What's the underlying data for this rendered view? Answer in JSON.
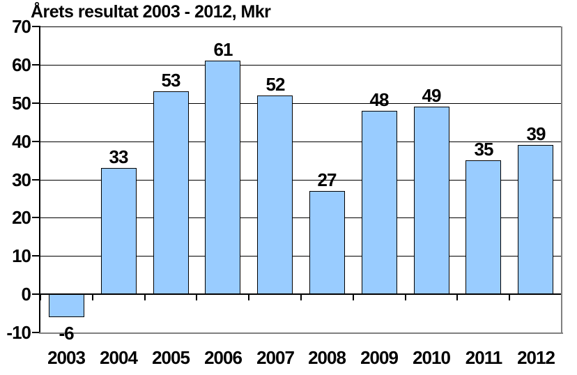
{
  "chart_data": {
    "type": "bar",
    "title": "Årets resultat 2003 - 2012, Mkr",
    "categories": [
      "2003",
      "2004",
      "2005",
      "2006",
      "2007",
      "2008",
      "2009",
      "2010",
      "2011",
      "2012"
    ],
    "values": [
      -6,
      33,
      53,
      61,
      52,
      27,
      48,
      49,
      35,
      39
    ],
    "value_labels": [
      "-6",
      "33",
      "53",
      "61",
      "52",
      "27",
      "48",
      "49",
      "35",
      "39"
    ],
    "xlabel": "",
    "ylabel": "",
    "ylim": [
      -10,
      70
    ],
    "yticks": [
      70,
      60,
      50,
      40,
      30,
      20,
      10,
      0,
      -10
    ],
    "grid": true,
    "legend": "none",
    "colors": {
      "bar_fill": "#99CCFF",
      "bar_border": "#000000",
      "gridline": "#000000",
      "axis": "#000000",
      "plot_border": "#808080",
      "text": "#000000",
      "background": "#FFFFFF"
    }
  }
}
